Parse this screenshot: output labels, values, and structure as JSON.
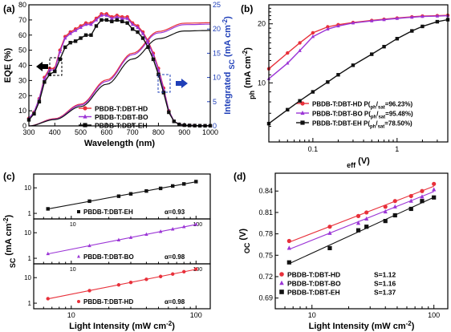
{
  "chart_data": [
    {
      "id": "a",
      "panel_label": "(a)",
      "type": "line",
      "xlabel": "Wavelength (nm)",
      "ylabel_left": "EQE (%)",
      "ylabel_right_html": "Integrated <i>J</i><tspan baseline-shift='sub' font-size='9'>SC</tspan> (mA cm<tspan baseline-shift='super' font-size='8'>-2</tspan>)",
      "xlim": [
        300,
        1000
      ],
      "xticks": [
        300,
        400,
        500,
        600,
        700,
        800,
        900,
        1000
      ],
      "ylim": [
        0,
        80
      ],
      "yticks": [
        0,
        10,
        20,
        30,
        40,
        50,
        60,
        70,
        80
      ],
      "ylim_right": [
        0,
        25
      ],
      "yticks_right": [
        0,
        5,
        10,
        15,
        20,
        25
      ],
      "series": [
        {
          "name": "PBDB-T:DBT-HD",
          "color": "#e8303a",
          "marker": "circle",
          "x": [
            300,
            320,
            340,
            360,
            380,
            400,
            420,
            440,
            460,
            480,
            500,
            520,
            540,
            560,
            580,
            600,
            620,
            640,
            660,
            680,
            700,
            720,
            740,
            760,
            780,
            800,
            820,
            840,
            860,
            880,
            900,
            920,
            940,
            960,
            980,
            1000
          ],
          "y": [
            5,
            9,
            18,
            32,
            38,
            38,
            50,
            59,
            62,
            64,
            66,
            68,
            68,
            71,
            74,
            74,
            72,
            73,
            72,
            72,
            68,
            66,
            62,
            56,
            48,
            38,
            25,
            10,
            3,
            1,
            0.5,
            0.3,
            0.2,
            0.1,
            0.1,
            0.1
          ],
          "integrated_x": [
            300,
            400,
            500,
            600,
            700,
            800,
            900,
            1000
          ],
          "integrated_y": [
            0,
            1.5,
            4.5,
            9.5,
            15,
            19.5,
            21.2,
            21.3
          ]
        },
        {
          "name": "PBDB-T:DBT-BO",
          "color": "#9b35d6",
          "marker": "triangle",
          "x": [
            300,
            320,
            340,
            360,
            380,
            400,
            420,
            440,
            460,
            480,
            500,
            520,
            540,
            560,
            580,
            600,
            620,
            640,
            660,
            680,
            700,
            720,
            740,
            760,
            780,
            800,
            820,
            840,
            860,
            880,
            900,
            920,
            940,
            960,
            980,
            1000
          ],
          "y": [
            5,
            9,
            18,
            31,
            37,
            37,
            49,
            58,
            61,
            63,
            65,
            67,
            67,
            70,
            73,
            73,
            71,
            72,
            71,
            71,
            67,
            65,
            61,
            55,
            47,
            37,
            24,
            10,
            3,
            1,
            0.5,
            0.3,
            0.2,
            0.1,
            0.1,
            0.1
          ],
          "integrated_x": [
            300,
            400,
            500,
            600,
            700,
            800,
            900,
            1000
          ],
          "integrated_y": [
            0,
            1.4,
            4.3,
            9.2,
            14.7,
            19.2,
            20.9,
            21.0
          ]
        },
        {
          "name": "PBDB-T:DBT-EH",
          "color": "#111111",
          "marker": "square",
          "x": [
            300,
            320,
            340,
            360,
            380,
            400,
            420,
            440,
            460,
            480,
            500,
            520,
            540,
            560,
            580,
            600,
            620,
            640,
            660,
            680,
            700,
            720,
            740,
            760,
            780,
            800,
            820,
            840,
            860,
            880,
            900,
            920,
            940,
            960,
            980,
            1000
          ],
          "y": [
            4,
            8,
            16,
            29,
            34,
            36,
            44,
            52,
            55,
            56,
            58,
            60,
            60,
            66,
            70,
            70,
            69,
            70,
            69,
            68,
            64,
            62,
            58,
            52,
            44,
            34,
            22,
            9,
            3,
            1,
            0.5,
            0.3,
            0.2,
            0.1,
            0.1,
            0.1
          ],
          "integrated_x": [
            300,
            400,
            500,
            600,
            700,
            800,
            900,
            1000
          ],
          "integrated_y": [
            0,
            1.3,
            4.0,
            8.6,
            13.8,
            18.0,
            19.6,
            19.7
          ]
        }
      ]
    },
    {
      "id": "b",
      "panel_label": "(b)",
      "type": "line",
      "xscale": "log",
      "yscale": "log",
      "xlabel_html": "<i>V</i><tspan baseline-shift='sub' font-size='9'>eff</tspan> (V)",
      "ylabel_html": "<i>J</i><tspan baseline-shift='sub' font-size='9'>ph</tspan> (mA cm<tspan baseline-shift='super' font-size='8'>-2</tspan>)",
      "xlim": [
        0.03,
        4
      ],
      "xticks": [
        0.1,
        1
      ],
      "ylim": [
        5,
        25
      ],
      "yticks": [
        10,
        20
      ],
      "series": [
        {
          "name": "PBDB-T:DBT-HD",
          "legend_html": "PBDB-T:DBT-HD  P(<i>J</i><tspan baseline-shift='sub' font-size='6'>ph</tspan>/<i>J</i><tspan baseline-shift='sub' font-size='6'>sat</tspan>=96.23%)",
          "color": "#e8303a",
          "marker": "circle",
          "x": [
            0.03,
            0.05,
            0.07,
            0.1,
            0.15,
            0.2,
            0.3,
            0.5,
            0.7,
            1,
            1.5,
            2,
            3,
            4
          ],
          "y": [
            11.8,
            14.2,
            16.0,
            18.0,
            19.3,
            19.8,
            20.3,
            20.8,
            21.1,
            21.4,
            21.7,
            21.9,
            22.0,
            22.1
          ]
        },
        {
          "name": "PBDB-T:DBT-BO",
          "legend_html": "PBDB-T:DBT-BO  P(<i>J</i><tspan baseline-shift='sub' font-size='6'>ph</tspan>/<i>J</i><tspan baseline-shift='sub' font-size='6'>sat</tspan>=95.48%)",
          "color": "#9b35d6",
          "marker": "triangle",
          "x": [
            0.03,
            0.05,
            0.07,
            0.1,
            0.15,
            0.2,
            0.3,
            0.5,
            0.7,
            1,
            1.5,
            2,
            3,
            4
          ],
          "y": [
            10.5,
            12.6,
            14.6,
            17.2,
            18.8,
            19.5,
            20.2,
            20.7,
            21.0,
            21.3,
            21.6,
            21.8,
            21.9,
            22.0
          ]
        },
        {
          "name": "PBDB-T:DBT-EH",
          "legend_html": "PBDB-T:DBT-EH  P(<i>J</i><tspan baseline-shift='sub' font-size='6'>ph</tspan>/<i>J</i><tspan baseline-shift='sub' font-size='6'>sat</tspan>=78.50%)",
          "color": "#111111",
          "marker": "square",
          "x": [
            0.03,
            0.05,
            0.07,
            0.1,
            0.15,
            0.2,
            0.3,
            0.5,
            0.7,
            1,
            1.5,
            2,
            3,
            4
          ],
          "y": [
            6.2,
            7.3,
            8.1,
            9.0,
            10.1,
            11.0,
            12.3,
            14.0,
            15.3,
            16.8,
            18.4,
            19.4,
            20.5,
            21.0
          ]
        }
      ]
    },
    {
      "id": "c",
      "panel_label": "(c)",
      "type": "scatter",
      "xscale": "log",
      "yscale": "log",
      "xlabel_html": "Light Intensity (mW cm<tspan baseline-shift='super' font-size='8'>-2</tspan>)",
      "ylabel_html": "<i>J</i><tspan baseline-shift='sub' font-size='9'>SC</tspan> (mA cm<tspan baseline-shift='super' font-size='8'>-2</tspan>)",
      "xlim": [
        5,
        130
      ],
      "xticks": [
        10,
        100
      ],
      "subpanels": [
        {
          "name": "PBDB-T:DBT-EH",
          "alpha": "α=0.93",
          "color": "#111111",
          "marker": "square",
          "ylim": [
            0.7,
            30
          ],
          "yticks": [
            1,
            10
          ],
          "x": [
            6.5,
            14,
            24,
            30,
            40,
            52,
            65,
            80,
            100
          ],
          "y": [
            1.5,
            3.0,
            4.7,
            5.8,
            7.5,
            9.5,
            11.8,
            14.2,
            17.5
          ]
        },
        {
          "name": "PBDB-T:DBT-BO",
          "alpha": "α=0.98",
          "color": "#9b35d6",
          "marker": "triangle",
          "ylim": [
            0.7,
            30
          ],
          "yticks": [
            1,
            10
          ],
          "x": [
            6.5,
            14,
            24,
            30,
            40,
            52,
            65,
            80,
            100
          ],
          "y": [
            1.5,
            3.1,
            5.2,
            6.5,
            8.6,
            11.1,
            13.8,
            17.0,
            21.2
          ]
        },
        {
          "name": "PBDB-T:DBT-HD",
          "alpha": "α=0.98",
          "color": "#e8303a",
          "marker": "circle",
          "ylim": [
            0.7,
            30
          ],
          "yticks": [
            1,
            10
          ],
          "x": [
            6.5,
            14,
            24,
            30,
            40,
            52,
            65,
            80,
            100
          ],
          "y": [
            1.5,
            3.1,
            5.2,
            6.5,
            8.6,
            11.1,
            13.8,
            17.0,
            21.5
          ]
        }
      ]
    },
    {
      "id": "d",
      "panel_label": "(d)",
      "type": "scatter",
      "xscale": "log",
      "xlabel_html": "Light Intensity (mW cm<tspan baseline-shift='super' font-size='8'>-2</tspan>)",
      "ylabel_html": "<i>V</i><tspan baseline-shift='sub' font-size='9'>OC</tspan> (V)",
      "xlim": [
        5,
        130
      ],
      "xticks": [
        10,
        100
      ],
      "ylim": [
        0.675,
        0.865
      ],
      "yticks": [
        0.69,
        0.72,
        0.75,
        0.78,
        0.81,
        0.84
      ],
      "series": [
        {
          "name": "PBDB-T:DBT-HD",
          "slope_html": "S=1.12 <i>KT/q</i>",
          "color": "#e8303a",
          "marker": "circle",
          "x": [
            6.5,
            14,
            24,
            28,
            40,
            48,
            65,
            80,
            100
          ],
          "y": [
            0.77,
            0.79,
            0.805,
            0.81,
            0.818,
            0.826,
            0.833,
            0.84,
            0.85
          ]
        },
        {
          "name": "PBDB-T:DBT-BO",
          "slope_html": "S=1.16 <i>KT/q</i>",
          "color": "#9b35d6",
          "marker": "triangle",
          "x": [
            6.5,
            14,
            24,
            28,
            40,
            48,
            65,
            80,
            100
          ],
          "y": [
            0.76,
            0.781,
            0.795,
            0.801,
            0.811,
            0.818,
            0.826,
            0.832,
            0.842
          ]
        },
        {
          "name": "PBDB-T:DBT-EH",
          "slope_html": "S=1.37 <i>KT/q</i>",
          "color": "#111111",
          "marker": "square",
          "x": [
            6.5,
            14,
            24,
            28,
            40,
            48,
            65,
            80,
            100
          ],
          "y": [
            0.74,
            0.76,
            0.785,
            0.79,
            0.798,
            0.806,
            0.815,
            0.826,
            0.831
          ]
        }
      ]
    }
  ]
}
